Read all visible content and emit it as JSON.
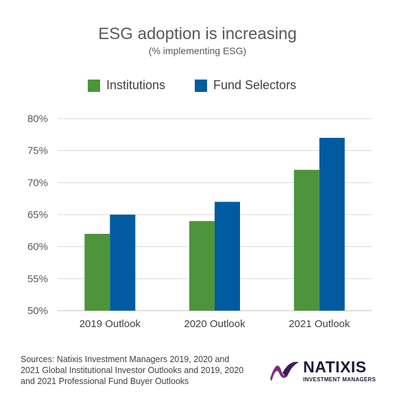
{
  "chart_data": {
    "type": "bar",
    "title": "ESG adoption is increasing",
    "subtitle": "(% implementing ESG)",
    "categories": [
      "2019 Outlook",
      "2020 Outlook",
      "2021 Outlook"
    ],
    "series": [
      {
        "name": "Institutions",
        "values": [
          62,
          64,
          72
        ],
        "color": "#4e943a"
      },
      {
        "name": "Fund Selectors",
        "values": [
          65,
          67,
          77
        ],
        "color": "#005ba0"
      }
    ],
    "ylim": [
      50,
      80
    ],
    "yticks": [
      "50%",
      "55%",
      "60%",
      "65%",
      "70%",
      "75%",
      "80%"
    ],
    "y_tick_values": [
      50,
      55,
      60,
      65,
      70,
      75,
      80
    ],
    "grid": true,
    "legend_position": "top"
  },
  "footer": {
    "source": "Sources: Natixis Investment Managers 2019, 2020 and 2021 Global Institutional Investor Outlooks and 2019, 2020 and 2021 Professional Fund Buyer Outlooks"
  },
  "logo": {
    "name": "NATIXIS",
    "tagline": "INVESTMENT MANAGERS",
    "colors": [
      "#7b2f7e",
      "#3a1a5c"
    ]
  }
}
